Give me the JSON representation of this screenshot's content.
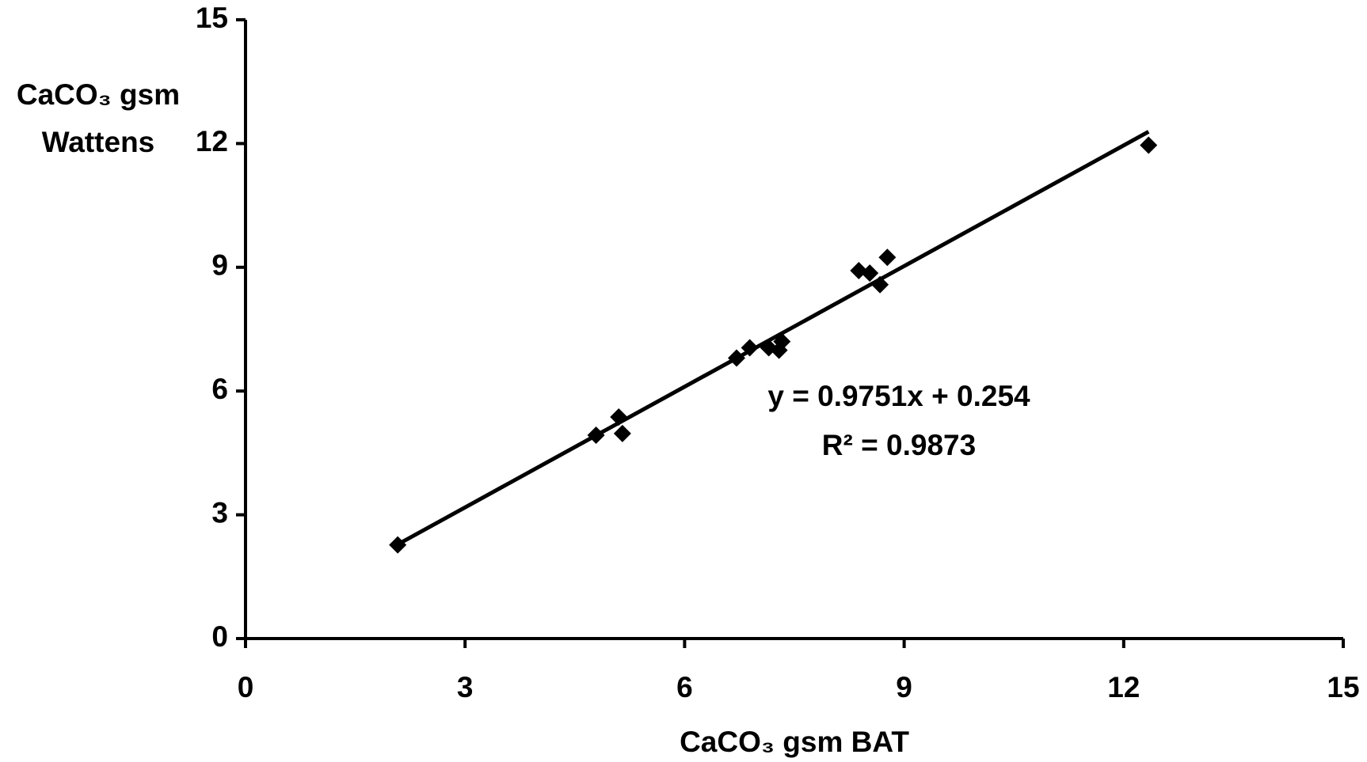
{
  "chart_data": {
    "type": "scatter",
    "x_label": "CaCO₃ gsm BAT",
    "y_label": [
      "CaCO₃ gsm",
      "Wattens"
    ],
    "x": [
      2.08,
      4.79,
      5.1,
      5.15,
      6.71,
      6.89,
      7.15,
      7.29,
      7.33,
      8.38,
      8.53,
      8.67,
      8.77,
      12.34
    ],
    "values": [
      2.27,
      4.93,
      5.37,
      4.97,
      6.8,
      7.05,
      7.05,
      6.99,
      7.2,
      8.92,
      8.86,
      8.58,
      9.24,
      11.96
    ],
    "color": "#000000",
    "xlim": [
      0,
      15
    ],
    "ylim": [
      0,
      15
    ],
    "xticks": [
      0,
      3,
      6,
      9,
      12,
      15
    ],
    "yticks": [
      0,
      3,
      6,
      9,
      12,
      15
    ],
    "trendline": {
      "slope": 0.9751,
      "intercept": 0.254,
      "label": "y = 0.9751x + 0.254",
      "r2": 0.9873,
      "r2_label": "R² = 0.9873"
    }
  }
}
